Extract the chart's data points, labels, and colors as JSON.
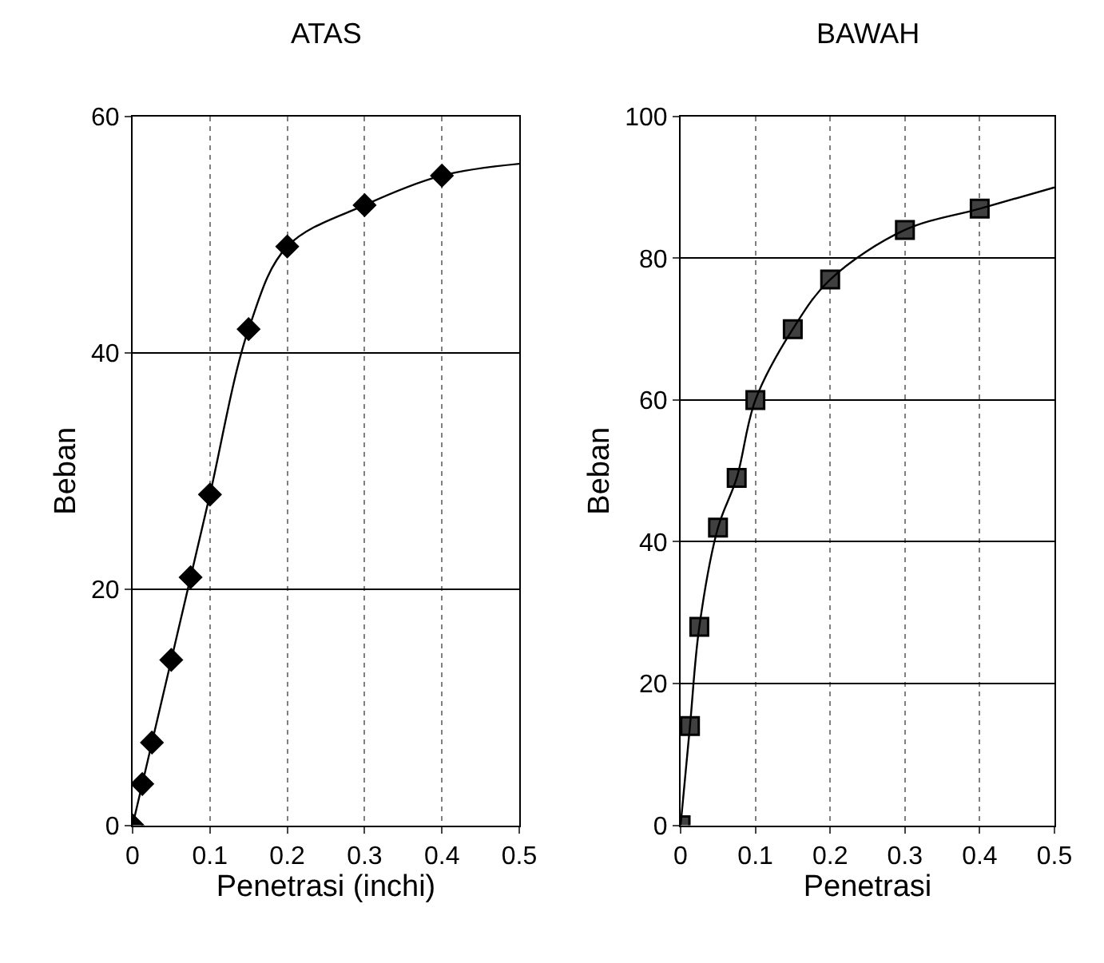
{
  "chart_data": [
    {
      "type": "scatter",
      "title": "ATAS",
      "xlabel": "Penetrasi (inchi)",
      "ylabel": "Beban",
      "xlim": [
        0,
        0.5
      ],
      "xticks": [
        0,
        0.1,
        0.2,
        0.3,
        0.4,
        0.5
      ],
      "ylim": [
        0,
        60
      ],
      "yticks": [
        0,
        20,
        40,
        60
      ],
      "grid": true,
      "series": [
        {
          "marker": "diamond",
          "color": "#000000",
          "x": [
            0,
            0.0125,
            0.025,
            0.05,
            0.075,
            0.1,
            0.15,
            0.2,
            0.3,
            0.4
          ],
          "values": [
            0,
            3.5,
            7,
            14,
            21,
            28,
            42,
            49,
            52.5,
            55
          ]
        },
        {
          "type": "line",
          "marker": "none",
          "color": "#000000",
          "x": [
            0,
            0.0125,
            0.025,
            0.05,
            0.075,
            0.1,
            0.15,
            0.2,
            0.3,
            0.4,
            0.5
          ],
          "values": [
            0,
            3.5,
            7,
            14,
            21,
            28,
            42,
            49,
            52.5,
            55,
            56
          ]
        }
      ]
    },
    {
      "type": "scatter",
      "title": "BAWAH",
      "xlabel": "Penetrasi",
      "ylabel": "Beban",
      "xlim": [
        0,
        0.5
      ],
      "xticks": [
        0,
        0.1,
        0.2,
        0.3,
        0.4,
        0.5
      ],
      "ylim": [
        0,
        100
      ],
      "yticks": [
        0,
        20,
        40,
        60,
        80,
        100
      ],
      "grid": true,
      "series": [
        {
          "marker": "square",
          "color": "#404040",
          "x": [
            0,
            0.0125,
            0.025,
            0.05,
            0.075,
            0.1,
            0.15,
            0.2,
            0.3,
            0.4
          ],
          "values": [
            0,
            14,
            28,
            42,
            49,
            60,
            70,
            77,
            84,
            87
          ]
        },
        {
          "type": "line",
          "marker": "none",
          "color": "#000000",
          "x": [
            0,
            0.0125,
            0.025,
            0.05,
            0.075,
            0.1,
            0.15,
            0.2,
            0.3,
            0.4,
            0.5
          ],
          "values": [
            0,
            14,
            28,
            42,
            49,
            60,
            70,
            77,
            84,
            87,
            90
          ]
        }
      ]
    }
  ]
}
